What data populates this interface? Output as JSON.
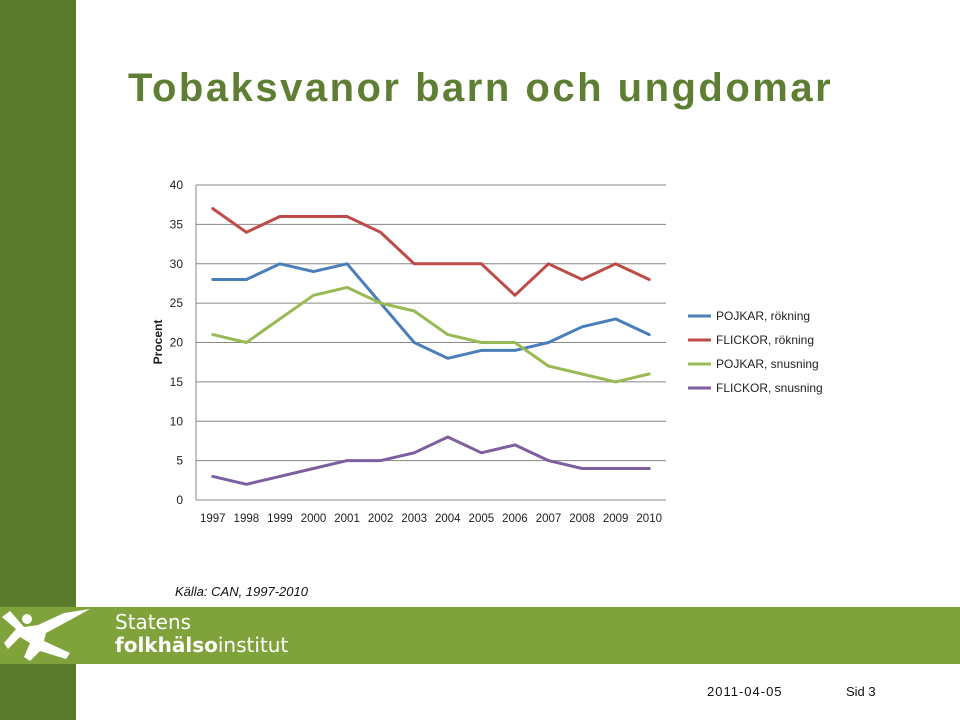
{
  "slide": {
    "title": "Tobaksvanor barn och ungdomar",
    "source": "Källa: CAN, 1997-2010",
    "date": "2011-04-05",
    "page": "Sid 3"
  },
  "logo": {
    "line1": "Statens",
    "line2_bold": "folkhälso",
    "line2_rest": "institut"
  },
  "colors": {
    "sidebar": "#5a7a2c",
    "banner": "#7fa23a",
    "title": "#5e7f33"
  },
  "chart_data": {
    "type": "line",
    "title": "",
    "xlabel": "",
    "ylabel": "Procent",
    "ylim": [
      0,
      40
    ],
    "yticks": [
      0,
      5,
      10,
      15,
      20,
      25,
      30,
      35,
      40
    ],
    "grid": true,
    "legend_position": "right",
    "x": [
      "1997",
      "1998",
      "1999",
      "2000",
      "2001",
      "2002",
      "2003",
      "2004",
      "2005",
      "2006",
      "2007",
      "2008",
      "2009",
      "2010"
    ],
    "series": [
      {
        "name": "POJKAR, rökning",
        "color": "#4a7ebb",
        "values": [
          28,
          28,
          30,
          29,
          30,
          25,
          20,
          18,
          19,
          19,
          20,
          22,
          23,
          21
        ]
      },
      {
        "name": "FLICKOR, rökning",
        "color": "#be4b48",
        "values": [
          37,
          34,
          36,
          36,
          36,
          34,
          30,
          30,
          30,
          26,
          30,
          28,
          30,
          28
        ]
      },
      {
        "name": "POJKAR, snusning",
        "color": "#98b954",
        "values": [
          21,
          20,
          23,
          26,
          27,
          25,
          24,
          21,
          20,
          20,
          17,
          16,
          15,
          16
        ]
      },
      {
        "name": "FLICKOR, snusning",
        "color": "#7d5fa0",
        "values": [
          3,
          2,
          3,
          4,
          5,
          5,
          6,
          8,
          6,
          7,
          5,
          4,
          4,
          4
        ]
      }
    ]
  }
}
